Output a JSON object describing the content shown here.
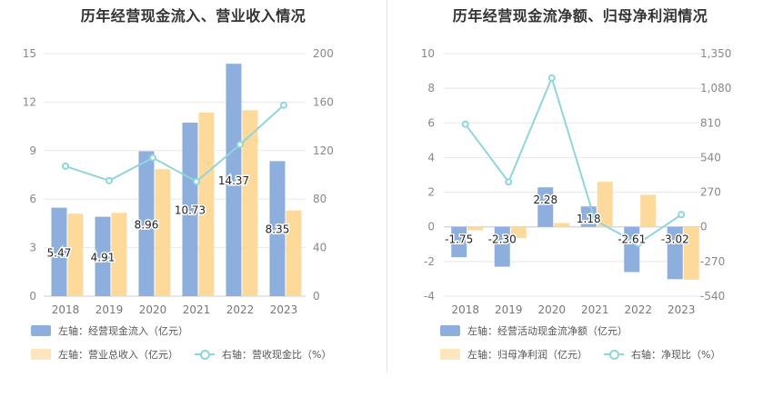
{
  "chart_data": [
    {
      "type": "bar",
      "title": "历年经营现金流入、营业收入情况",
      "categories": [
        "2018",
        "2019",
        "2020",
        "2021",
        "2022",
        "2023"
      ],
      "left_axis": {
        "min": 0,
        "max": 15,
        "ticks": [
          "0",
          "3",
          "6",
          "9",
          "12",
          "15"
        ]
      },
      "right_axis": {
        "min": 0,
        "max": 200,
        "ticks": [
          "0",
          "40",
          "80",
          "120",
          "160",
          "200"
        ]
      },
      "series": [
        {
          "name": "左轴：经营现金流入（亿元）",
          "type": "bar",
          "axis": "left",
          "color": "#8eaedd",
          "values": [
            5.47,
            4.91,
            8.96,
            10.73,
            14.37,
            8.35
          ],
          "labels": [
            "5.47",
            "4.91",
            "8.96",
            "10.73",
            "14.37",
            "8.35"
          ]
        },
        {
          "name": "左轴：营业总收入（亿元）",
          "type": "bar",
          "axis": "left",
          "color": "#fdd99c",
          "values": [
            5.1,
            5.15,
            7.85,
            11.35,
            11.5,
            5.3
          ]
        },
        {
          "name": "右轴：营收现金比（%）",
          "type": "line",
          "axis": "right",
          "color": "#8fd6dc",
          "values": [
            107.2,
            95.3,
            114.1,
            94.5,
            125.0,
            157.5
          ]
        }
      ]
    },
    {
      "type": "bar",
      "title": "历年经营现金流净额、归母净利润情况",
      "categories": [
        "2018",
        "2019",
        "2020",
        "2021",
        "2022",
        "2023"
      ],
      "left_axis": {
        "min": -4,
        "max": 10,
        "ticks": [
          "-4",
          "-2",
          "0",
          "2",
          "4",
          "6",
          "8",
          "10"
        ]
      },
      "right_axis": {
        "min": -540,
        "max": 1350,
        "ticks": [
          "-540",
          "-270",
          "0",
          "270",
          "540",
          "810",
          "1,080",
          "1,350"
        ]
      },
      "series": [
        {
          "name": "左轴：经营活动现金流净额（亿元）",
          "type": "bar",
          "axis": "left",
          "color": "#8eaedd",
          "values": [
            -1.75,
            -2.3,
            2.28,
            1.18,
            -2.61,
            -3.02
          ],
          "labels": [
            "-1.75",
            "-2.30",
            "2.28",
            "1.18",
            "-2.61",
            "-3.02"
          ]
        },
        {
          "name": "左轴：归母净利润（亿元）",
          "type": "bar",
          "axis": "left",
          "color": "#fdd99c",
          "values": [
            -0.2,
            -0.65,
            0.22,
            2.6,
            1.85,
            -3.05
          ]
        },
        {
          "name": "右轴：净现比（%）",
          "type": "line",
          "axis": "right",
          "color": "#8fd6dc",
          "values": [
            800,
            350,
            1160,
            50,
            -130,
            95
          ]
        }
      ]
    }
  ]
}
